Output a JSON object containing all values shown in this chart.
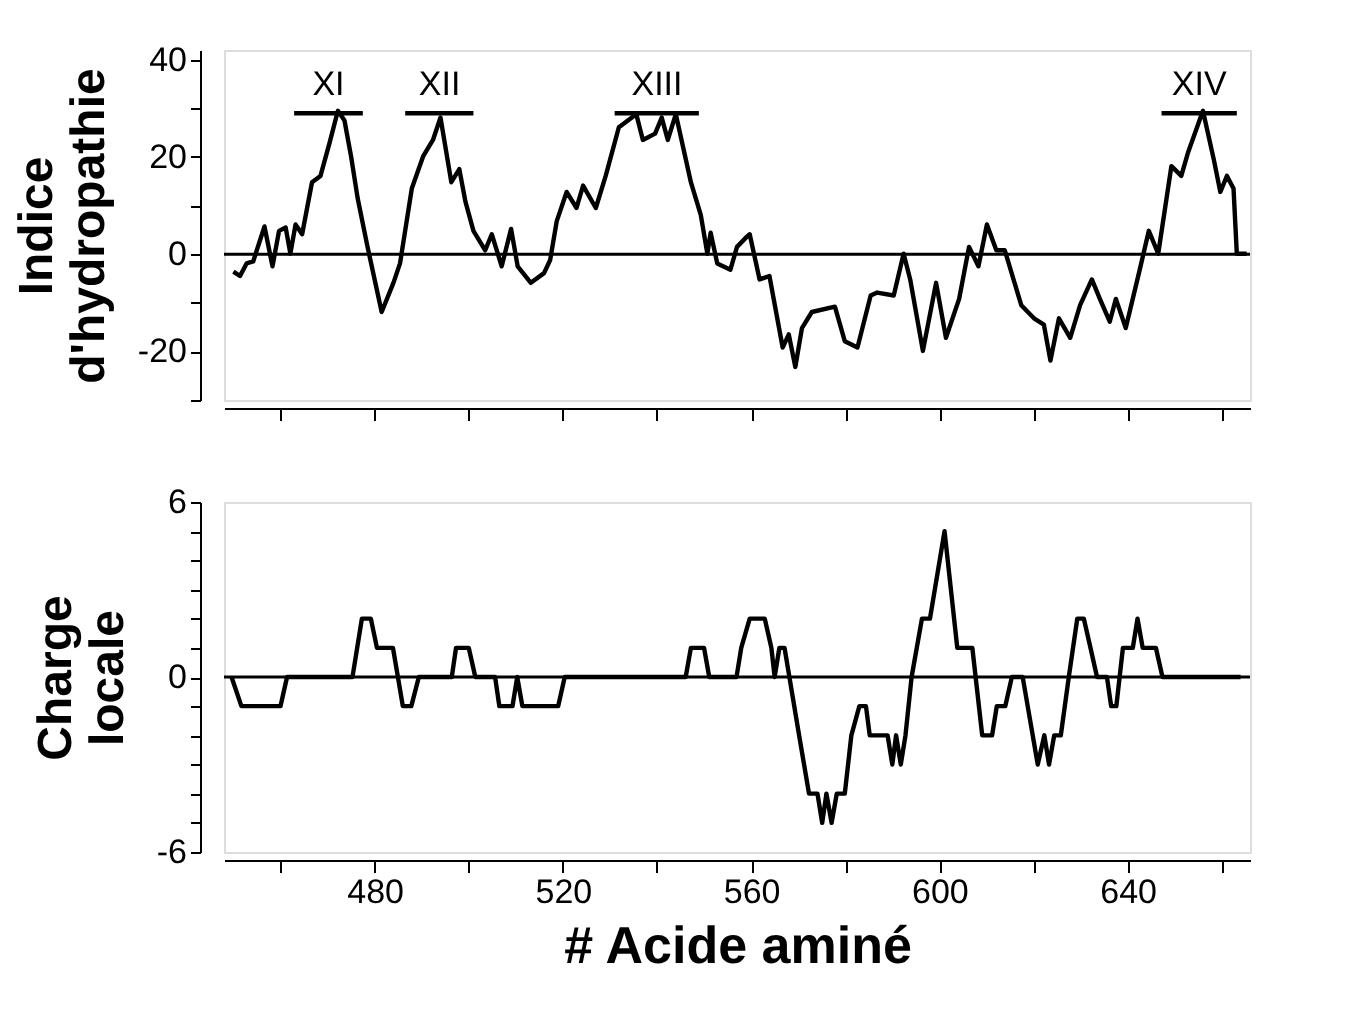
{
  "chart_data": [
    {
      "type": "line",
      "ylabel": "Indice d'hydropathie",
      "xlim": [
        448,
        666
      ],
      "ylim": [
        -30,
        42
      ],
      "xticks": [
        460,
        480,
        500,
        520,
        540,
        560,
        580,
        600,
        620,
        640,
        660
      ],
      "yticks": [
        {
          "value": -30,
          "label": null
        },
        -20,
        {
          "value": -10,
          "label": null
        },
        0,
        {
          "value": 10,
          "label": null
        },
        20,
        {
          "value": 30,
          "label": null
        },
        40
      ],
      "tick_labels": "y",
      "grid": false,
      "marker": "none",
      "line_style": "solid",
      "ref_lines": [
        {
          "axis": "y",
          "value": 0,
          "label": null,
          "color": "#000000"
        }
      ],
      "annotations": [
        {
          "text": "XI",
          "x": 470.2,
          "y": 29
        },
        {
          "text": "XII",
          "x": 493.8,
          "y": 29
        },
        {
          "text": "XIII",
          "x": 540,
          "y": 29
        },
        {
          "text": "XIV",
          "x": 655.2,
          "y": 29
        }
      ],
      "series": [
        {
          "type": "line",
          "color": "#000000",
          "x": [
            462.9,
            477.5
          ],
          "values": [
            29,
            29
          ]
        },
        {
          "type": "line",
          "color": "#000000",
          "x": [
            486.5,
            501
          ],
          "values": [
            29,
            29
          ]
        },
        {
          "type": "line",
          "color": "#000000",
          "x": [
            531,
            548.9
          ],
          "values": [
            29,
            29
          ]
        },
        {
          "type": "line",
          "color": "#000000",
          "x": [
            647.2,
            663.2
          ],
          "values": [
            29,
            29
          ]
        },
        {
          "color": "#000000",
          "x": [
            450,
            451.4,
            452.8,
            454.2,
            456.6,
            458.3,
            459.7,
            461.1,
            462.1,
            463.2,
            464.6,
            466.7,
            468.5,
            470.4,
            472.2,
            473.6,
            475,
            476.4,
            478.5,
            481.5,
            484,
            485.4,
            487.9,
            490.3,
            492.4,
            494,
            496.3,
            498,
            499.3,
            501,
            503.5,
            504.9,
            507,
            509,
            510.4,
            513.2,
            516,
            517.3,
            518.7,
            520.8,
            522.9,
            524.3,
            527,
            529.1,
            531.9,
            535.6,
            537,
            539.6,
            541,
            542.3,
            544,
            547.2,
            549.3,
            550.7,
            551.4,
            552.8,
            555.6,
            557,
            559,
            559.7,
            561.8,
            563.9,
            566.7,
            568,
            569.4,
            570.8,
            572.9,
            577.8,
            579.9,
            582.6,
            585.4,
            586.8,
            590.3,
            592.4,
            593.8,
            596.5,
            599.3,
            601.4,
            604.2,
            606.3,
            608.3,
            610.1,
            612.1,
            613.9,
            617.4,
            620.1,
            622.2,
            623.6,
            625.4,
            627.8,
            629.9,
            632.4,
            634.1,
            636.2,
            637.5,
            639.6,
            642.4,
            644.5,
            646.5,
            649.3,
            651.4,
            652.8,
            656,
            658.3,
            659.7,
            661.1,
            662.5,
            663.2,
            665.3
          ],
          "values": [
            -3.6,
            -4.5,
            -1.9,
            -1.5,
            5.7,
            -2.5,
            4.8,
            5.5,
            0.1,
            6.1,
            4.1,
            14.8,
            16.1,
            22.8,
            29.5,
            27.5,
            20.1,
            11.5,
            1.5,
            -11.9,
            -5.9,
            -1.9,
            13.5,
            20.1,
            23.5,
            28.1,
            14.8,
            17.5,
            10.8,
            4.8,
            0.8,
            4.1,
            -2.5,
            5.2,
            -2.5,
            -5.9,
            -3.9,
            -1.2,
            6.8,
            12.8,
            9.5,
            14.1,
            9.5,
            16.1,
            26.1,
            28.8,
            23.5,
            24.8,
            28.1,
            23.5,
            28.8,
            14.8,
            8.1,
            0.1,
            4.4,
            -1.9,
            -3.2,
            1.5,
            3.5,
            4.1,
            -5.2,
            -4.5,
            -19.2,
            -16.5,
            -23.2,
            -15.2,
            -11.9,
            -10.8,
            -17.9,
            -19.2,
            -8.5,
            -7.9,
            -8.5,
            0.1,
            -5.2,
            -19.9,
            -5.9,
            -17.2,
            -9.2,
            1.5,
            -2.5,
            6.1,
            0.8,
            0.8,
            -10.5,
            -13.2,
            -14.5,
            -21.9,
            -13.2,
            -17.2,
            -10.5,
            -5.2,
            -9.2,
            -13.9,
            -9.2,
            -15.2,
            -3.9,
            4.8,
            0.1,
            18.1,
            16.1,
            20.8,
            29.5,
            19.5,
            12.8,
            16.1,
            13.5,
            0.1,
            0.1
          ]
        }
      ]
    },
    {
      "type": "line",
      "ylabel": "Charge locale",
      "xlabel": "# Acide aminé",
      "xlim": [
        448,
        666
      ],
      "ylim": [
        -6,
        6
      ],
      "xticks": [
        {
          "value": 460,
          "label": null
        },
        480,
        {
          "value": 500,
          "label": null
        },
        520,
        {
          "value": 540,
          "label": null
        },
        560,
        {
          "value": 580,
          "label": null
        },
        600,
        {
          "value": 620,
          "label": null
        },
        640,
        {
          "value": 660,
          "label": null
        }
      ],
      "yticks": [
        -6,
        {
          "value": -5,
          "label": null
        },
        {
          "value": -4,
          "label": null
        },
        {
          "value": -3,
          "label": null
        },
        {
          "value": -2,
          "label": null
        },
        {
          "value": -1,
          "label": null
        },
        0,
        {
          "value": 1,
          "label": null
        },
        {
          "value": 2,
          "label": null
        },
        {
          "value": 3,
          "label": null
        },
        {
          "value": 4,
          "label": null
        },
        {
          "value": 5,
          "label": null
        },
        6
      ],
      "grid": false,
      "marker": "none",
      "line_style": "solid",
      "ref_lines": [
        {
          "axis": "y",
          "value": 0,
          "label": null,
          "color": "#000000"
        }
      ],
      "series": [
        {
          "color": "#000000",
          "x": [
            449.6,
            451.7,
            460,
            461.4,
            475.3,
            477.3,
            479.2,
            480.5,
            483.9,
            486,
            487.8,
            489.4,
            496.4,
            497.3,
            500,
            501.4,
            505.6,
            506.5,
            509.3,
            510.3,
            511.4,
            519,
            520.4,
            546.1,
            547.2,
            550,
            551.1,
            556.9,
            557.9,
            559.7,
            562.9,
            564.3,
            565,
            566,
            567.1,
            570.2,
            572.3,
            574.1,
            575.1,
            576,
            577.1,
            578.2,
            579.9,
            581.3,
            583,
            584.4,
            585.2,
            589,
            590,
            590.8,
            591.8,
            592.8,
            594.1,
            596.3,
            598,
            601.1,
            603.8,
            607,
            609.1,
            611.2,
            612.2,
            614,
            615.4,
            617.7,
            620.9,
            622.3,
            623.3,
            624.4,
            625.8,
            627.5,
            629.3,
            630.7,
            632.1,
            633.5,
            635.6,
            636.5,
            637.6,
            639,
            641.1,
            642.1,
            643.2,
            646,
            647.4,
            664
          ],
          "values": [
            0,
            -1,
            -1,
            0,
            0,
            2,
            2,
            1,
            1,
            -1,
            -1,
            0,
            0,
            1,
            1,
            0,
            0,
            -1,
            -1,
            0,
            -1,
            -1,
            0,
            0,
            1,
            1,
            0,
            0,
            1,
            2,
            2,
            1,
            0,
            1,
            1,
            -2,
            -4,
            -4,
            -5,
            -4,
            -5,
            -4,
            -4,
            -2,
            -1,
            -1,
            -2,
            -2,
            -3,
            -2,
            -3,
            -2,
            0,
            2,
            2,
            5,
            1,
            1,
            -2,
            -2,
            -1,
            -1,
            0,
            0,
            -3,
            -2,
            -3,
            -2,
            -2,
            0,
            2,
            2,
            1,
            0,
            0,
            -1,
            -1,
            1,
            1,
            2,
            1,
            1,
            0,
            0
          ]
        }
      ]
    }
  ]
}
